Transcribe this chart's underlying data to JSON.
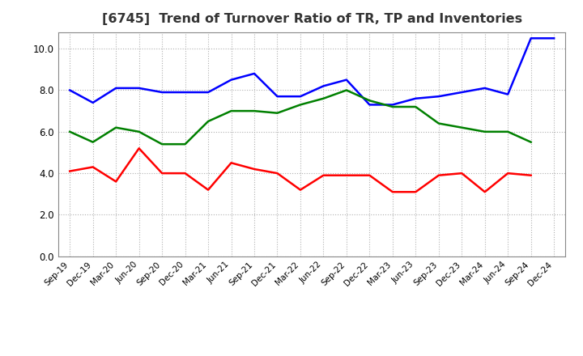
{
  "title": "[6745]  Trend of Turnover Ratio of TR, TP and Inventories",
  "x_labels": [
    "Sep-19",
    "Dec-19",
    "Mar-20",
    "Jun-20",
    "Sep-20",
    "Dec-20",
    "Mar-21",
    "Jun-21",
    "Sep-21",
    "Dec-21",
    "Mar-22",
    "Jun-22",
    "Sep-22",
    "Dec-22",
    "Mar-23",
    "Jun-23",
    "Sep-23",
    "Dec-23",
    "Mar-24",
    "Jun-24",
    "Sep-24",
    "Dec-24"
  ],
  "trade_receivables": [
    4.1,
    4.3,
    3.6,
    5.2,
    4.0,
    4.0,
    3.2,
    4.5,
    4.2,
    4.0,
    3.2,
    3.9,
    3.9,
    3.9,
    3.1,
    3.1,
    3.9,
    4.0,
    3.1,
    4.0,
    3.9,
    null
  ],
  "trade_payables": [
    8.0,
    7.4,
    8.1,
    8.1,
    7.9,
    7.9,
    7.9,
    8.5,
    8.8,
    7.7,
    7.7,
    8.2,
    8.5,
    7.3,
    7.3,
    7.6,
    7.7,
    7.9,
    8.1,
    7.8,
    10.5,
    10.5
  ],
  "inventories": [
    6.0,
    5.5,
    6.2,
    6.0,
    5.4,
    5.4,
    6.5,
    7.0,
    7.0,
    6.9,
    7.3,
    7.6,
    8.0,
    7.5,
    7.2,
    7.2,
    6.4,
    6.2,
    6.0,
    6.0,
    5.5,
    null
  ],
  "ylim": [
    0.0,
    10.8
  ],
  "yticks": [
    0.0,
    2.0,
    4.0,
    6.0,
    8.0,
    10.0
  ],
  "color_tr": "#ff0000",
  "color_tp": "#0000ff",
  "color_inv": "#008000",
  "background_color": "#ffffff",
  "grid_color": "#b0b0b0",
  "line_width": 1.8,
  "title_color": "#333333",
  "title_fontsize": 11.5
}
